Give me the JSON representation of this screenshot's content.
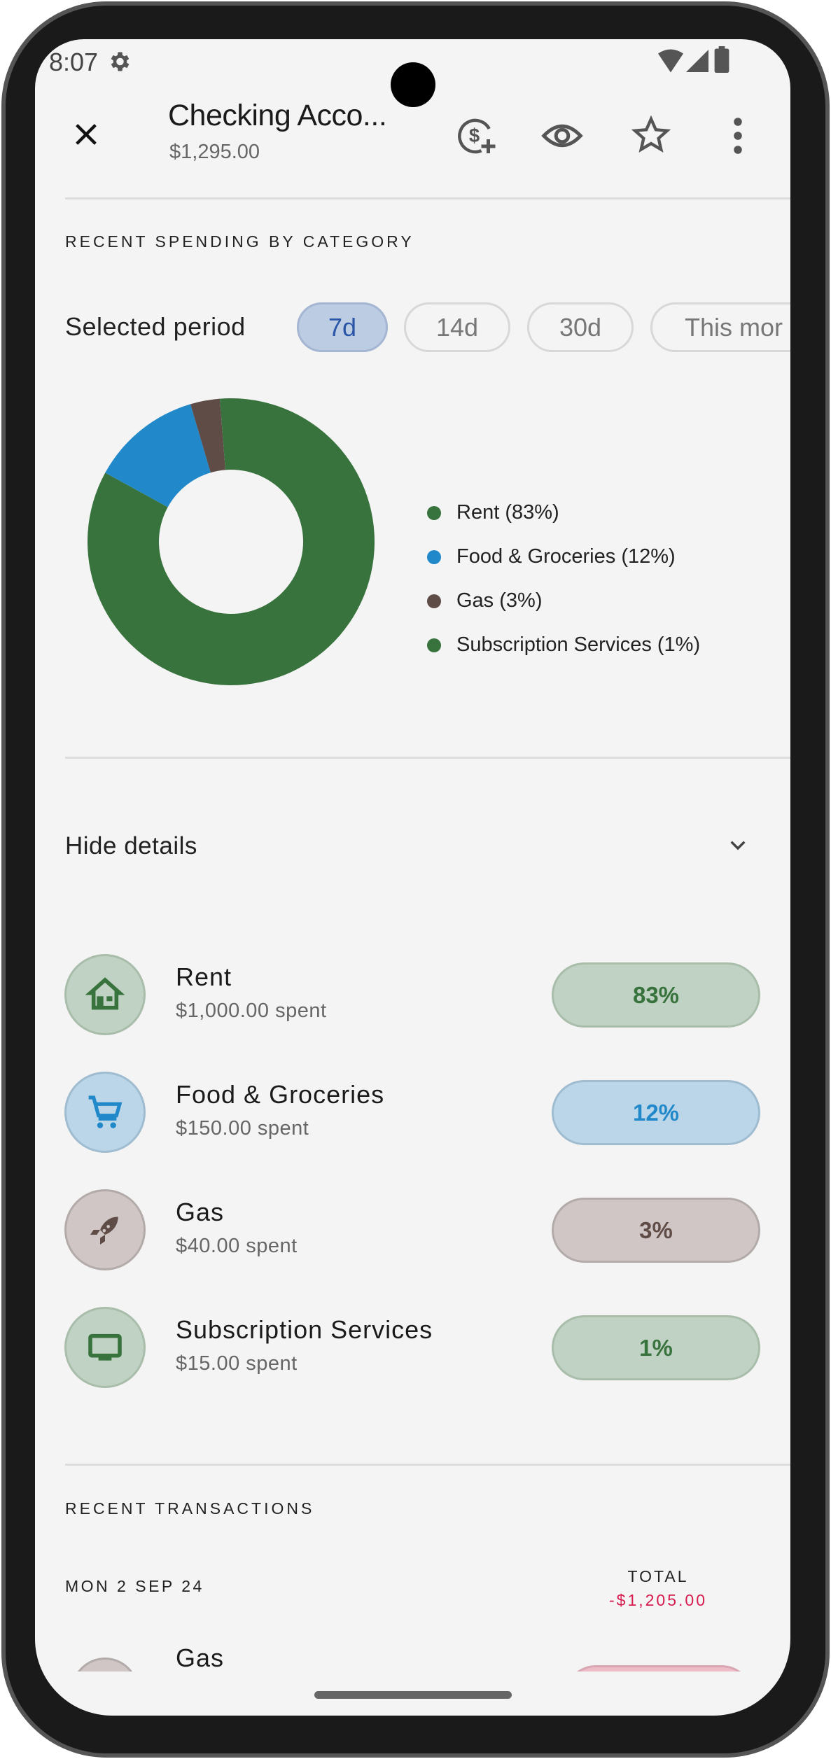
{
  "status_bar": {
    "time": "8:07",
    "icons": [
      "gear-icon",
      "wifi-icon",
      "signal-icon",
      "battery-icon"
    ]
  },
  "header": {
    "title": "Checking Acco...",
    "balance": "$1,295.00",
    "actions": [
      "close-icon",
      "add-money-icon",
      "eye-icon",
      "star-icon",
      "more-vert-icon"
    ]
  },
  "spending": {
    "section_title": "RECENT SPENDING BY CATEGORY",
    "period_label": "Selected period",
    "periods": [
      {
        "label": "7d",
        "selected": true
      },
      {
        "label": "14d"
      },
      {
        "label": "30d"
      },
      {
        "label": "This mor"
      }
    ],
    "hide_details": "Hide details"
  },
  "chart_data": {
    "type": "pie",
    "donut": true,
    "categories": [
      "Rent",
      "Food & Groceries",
      "Gas",
      "Subscription Services"
    ],
    "values": [
      1000,
      150,
      40,
      15
    ],
    "legend": [
      "Rent (83%)",
      "Food & Groceries (12%)",
      "Gas (3%)",
      "Subscription Services (1%)"
    ],
    "colors": [
      "#38733d",
      "#2188c9",
      "#604c47",
      "#38733d"
    ],
    "legend_position": "right"
  },
  "categories": [
    {
      "name": "Rent",
      "spent": "$1,000.00 spent",
      "percent": "83%",
      "icon": "home-icon",
      "color": "#38733d",
      "bg": "#c0d2c3",
      "border": "#a9bdab"
    },
    {
      "name": "Food & Groceries",
      "spent": "$150.00 spent",
      "percent": "12%",
      "icon": "cart-icon",
      "color": "#2188c9",
      "bg": "#bad6e8",
      "border": "#9fbcd0"
    },
    {
      "name": "Gas",
      "spent": "$40.00 spent",
      "percent": "3%",
      "icon": "rocket-icon",
      "color": "#604c47",
      "bg": "#cfc6c5",
      "border": "#b3abaa"
    },
    {
      "name": "Subscription Services",
      "spent": "$15.00 spent",
      "percent": "1%",
      "icon": "tv-icon",
      "color": "#38733d",
      "bg": "#c0d2c3",
      "border": "#a9bdab"
    }
  ],
  "transactions": {
    "section_title": "RECENT TRANSACTIONS",
    "date": "MON 2 SEP 24",
    "total_label": "TOTAL",
    "total": "-$1,205.00",
    "total_color": "#d81b4f",
    "first_item": "Gas"
  }
}
